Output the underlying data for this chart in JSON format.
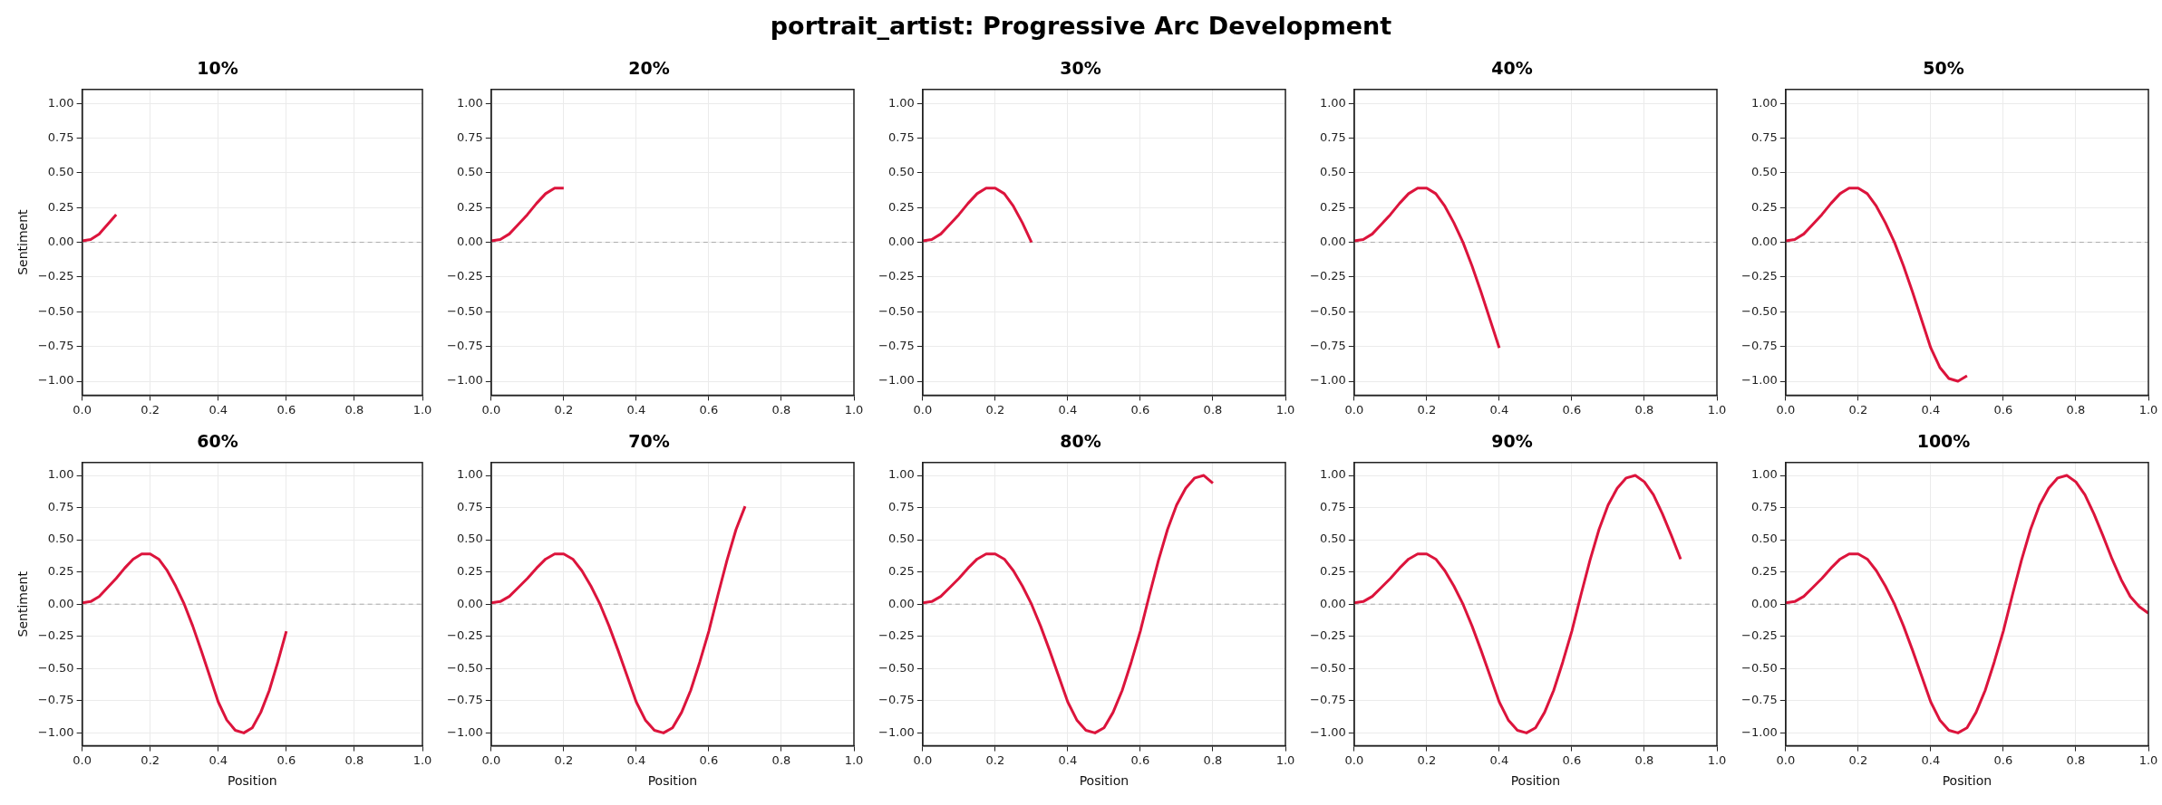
{
  "chart_data": [
    {
      "type": "line",
      "title": "10%",
      "ylabel": "Sentiment",
      "annotations": [
        "portrait_artist: Progressive Arc Development"
      ],
      "xlim": [
        0,
        1
      ],
      "ylim": [
        -1.1,
        1.1
      ],
      "xticks": [
        {
          "value": 0,
          "label": "0.0"
        },
        {
          "value": 0.2,
          "label": "0.2"
        },
        {
          "value": 0.4,
          "label": "0.4"
        },
        {
          "value": 0.6,
          "label": "0.6"
        },
        {
          "value": 0.8,
          "label": "0.8"
        },
        {
          "value": 1,
          "label": "1.0"
        }
      ],
      "yticks": [
        {
          "value": -1,
          "label": "−1.00"
        },
        {
          "value": -0.75,
          "label": "−0.75"
        },
        {
          "value": -0.5,
          "label": "−0.50"
        },
        {
          "value": -0.25,
          "label": "−0.25"
        },
        {
          "value": 0,
          "label": "0.00"
        },
        {
          "value": 0.25,
          "label": "0.25"
        },
        {
          "value": 0.5,
          "label": "0.50"
        },
        {
          "value": 0.75,
          "label": "0.75"
        },
        {
          "value": 1,
          "label": "1.00"
        }
      ],
      "grid": true,
      "ref_lines": [
        {
          "axis": "y",
          "value": 0,
          "color": "#aaaaaa",
          "line_style": "dashed"
        }
      ],
      "series": [
        {
          "color": "#dc143c",
          "x": [
            0,
            0.025,
            0.05,
            0.075,
            0.1
          ],
          "values": [
            0.01,
            0.02,
            0.06,
            0.13,
            0.2
          ]
        }
      ]
    },
    {
      "type": "line",
      "title": "20%",
      "xlim": [
        0,
        1
      ],
      "ylim": [
        -1.1,
        1.1
      ],
      "xticks": [
        {
          "value": 0,
          "label": "0.0"
        },
        {
          "value": 0.2,
          "label": "0.2"
        },
        {
          "value": 0.4,
          "label": "0.4"
        },
        {
          "value": 0.6,
          "label": "0.6"
        },
        {
          "value": 0.8,
          "label": "0.8"
        },
        {
          "value": 1,
          "label": "1.0"
        }
      ],
      "yticks": [
        {
          "value": -1,
          "label": "−1.00"
        },
        {
          "value": -0.75,
          "label": "−0.75"
        },
        {
          "value": -0.5,
          "label": "−0.50"
        },
        {
          "value": -0.25,
          "label": "−0.25"
        },
        {
          "value": 0,
          "label": "0.00"
        },
        {
          "value": 0.25,
          "label": "0.25"
        },
        {
          "value": 0.5,
          "label": "0.50"
        },
        {
          "value": 0.75,
          "label": "0.75"
        },
        {
          "value": 1,
          "label": "1.00"
        }
      ],
      "grid": true,
      "ref_lines": [
        {
          "axis": "y",
          "value": 0,
          "color": "#aaaaaa",
          "line_style": "dashed"
        }
      ],
      "series": [
        {
          "color": "#dc143c",
          "x": [
            0,
            0.025,
            0.05,
            0.075,
            0.1,
            0.125,
            0.15,
            0.175,
            0.2
          ],
          "values": [
            0.01,
            0.02,
            0.06,
            0.13,
            0.2,
            0.28,
            0.35,
            0.39,
            0.39
          ]
        }
      ]
    },
    {
      "type": "line",
      "title": "30%",
      "xlim": [
        0,
        1
      ],
      "ylim": [
        -1.1,
        1.1
      ],
      "xticks": [
        {
          "value": 0,
          "label": "0.0"
        },
        {
          "value": 0.2,
          "label": "0.2"
        },
        {
          "value": 0.4,
          "label": "0.4"
        },
        {
          "value": 0.6,
          "label": "0.6"
        },
        {
          "value": 0.8,
          "label": "0.8"
        },
        {
          "value": 1,
          "label": "1.0"
        }
      ],
      "yticks": [
        {
          "value": -1,
          "label": "−1.00"
        },
        {
          "value": -0.75,
          "label": "−0.75"
        },
        {
          "value": -0.5,
          "label": "−0.50"
        },
        {
          "value": -0.25,
          "label": "−0.25"
        },
        {
          "value": 0,
          "label": "0.00"
        },
        {
          "value": 0.25,
          "label": "0.25"
        },
        {
          "value": 0.5,
          "label": "0.50"
        },
        {
          "value": 0.75,
          "label": "0.75"
        },
        {
          "value": 1,
          "label": "1.00"
        }
      ],
      "grid": true,
      "ref_lines": [
        {
          "axis": "y",
          "value": 0,
          "color": "#aaaaaa",
          "line_style": "dashed"
        }
      ],
      "series": [
        {
          "color": "#dc143c",
          "x": [
            0,
            0.025,
            0.05,
            0.075,
            0.1,
            0.125,
            0.15,
            0.175,
            0.2,
            0.225,
            0.25,
            0.275,
            0.3
          ],
          "values": [
            0.01,
            0.02,
            0.06,
            0.13,
            0.2,
            0.28,
            0.35,
            0.39,
            0.39,
            0.35,
            0.26,
            0.14,
            0
          ]
        }
      ]
    },
    {
      "type": "line",
      "title": "40%",
      "xlim": [
        0,
        1
      ],
      "ylim": [
        -1.1,
        1.1
      ],
      "xticks": [
        {
          "value": 0,
          "label": "0.0"
        },
        {
          "value": 0.2,
          "label": "0.2"
        },
        {
          "value": 0.4,
          "label": "0.4"
        },
        {
          "value": 0.6,
          "label": "0.6"
        },
        {
          "value": 0.8,
          "label": "0.8"
        },
        {
          "value": 1,
          "label": "1.0"
        }
      ],
      "yticks": [
        {
          "value": -1,
          "label": "−1.00"
        },
        {
          "value": -0.75,
          "label": "−0.75"
        },
        {
          "value": -0.5,
          "label": "−0.50"
        },
        {
          "value": -0.25,
          "label": "−0.25"
        },
        {
          "value": 0,
          "label": "0.00"
        },
        {
          "value": 0.25,
          "label": "0.25"
        },
        {
          "value": 0.5,
          "label": "0.50"
        },
        {
          "value": 0.75,
          "label": "0.75"
        },
        {
          "value": 1,
          "label": "1.00"
        }
      ],
      "grid": true,
      "ref_lines": [
        {
          "axis": "y",
          "value": 0,
          "color": "#aaaaaa",
          "line_style": "dashed"
        }
      ],
      "series": [
        {
          "color": "#dc143c",
          "x": [
            0,
            0.025,
            0.05,
            0.075,
            0.1,
            0.125,
            0.15,
            0.175,
            0.2,
            0.225,
            0.25,
            0.275,
            0.3,
            0.325,
            0.35,
            0.375,
            0.4
          ],
          "values": [
            0.01,
            0.02,
            0.06,
            0.13,
            0.2,
            0.28,
            0.35,
            0.39,
            0.39,
            0.35,
            0.26,
            0.14,
            0,
            -0.17,
            -0.36,
            -0.56,
            -0.76
          ]
        }
      ]
    },
    {
      "type": "line",
      "title": "50%",
      "xlim": [
        0,
        1
      ],
      "ylim": [
        -1.1,
        1.1
      ],
      "xticks": [
        {
          "value": 0,
          "label": "0.0"
        },
        {
          "value": 0.2,
          "label": "0.2"
        },
        {
          "value": 0.4,
          "label": "0.4"
        },
        {
          "value": 0.6,
          "label": "0.6"
        },
        {
          "value": 0.8,
          "label": "0.8"
        },
        {
          "value": 1,
          "label": "1.0"
        }
      ],
      "yticks": [
        {
          "value": -1,
          "label": "−1.00"
        },
        {
          "value": -0.75,
          "label": "−0.75"
        },
        {
          "value": -0.5,
          "label": "−0.50"
        },
        {
          "value": -0.25,
          "label": "−0.25"
        },
        {
          "value": 0,
          "label": "0.00"
        },
        {
          "value": 0.25,
          "label": "0.25"
        },
        {
          "value": 0.5,
          "label": "0.50"
        },
        {
          "value": 0.75,
          "label": "0.75"
        },
        {
          "value": 1,
          "label": "1.00"
        }
      ],
      "grid": true,
      "ref_lines": [
        {
          "axis": "y",
          "value": 0,
          "color": "#aaaaaa",
          "line_style": "dashed"
        }
      ],
      "series": [
        {
          "color": "#dc143c",
          "x": [
            0,
            0.025,
            0.05,
            0.075,
            0.1,
            0.125,
            0.15,
            0.175,
            0.2,
            0.225,
            0.25,
            0.275,
            0.3,
            0.325,
            0.35,
            0.375,
            0.4,
            0.425,
            0.45,
            0.475,
            0.5
          ],
          "values": [
            0.01,
            0.02,
            0.06,
            0.13,
            0.2,
            0.28,
            0.35,
            0.39,
            0.39,
            0.35,
            0.26,
            0.14,
            0,
            -0.17,
            -0.36,
            -0.56,
            -0.76,
            -0.9,
            -0.98,
            -1,
            -0.96
          ]
        }
      ]
    },
    {
      "type": "line",
      "title": "60%",
      "xlabel": "Position",
      "ylabel": "Sentiment",
      "xlim": [
        0,
        1
      ],
      "ylim": [
        -1.1,
        1.1
      ],
      "xticks": [
        {
          "value": 0,
          "label": "0.0"
        },
        {
          "value": 0.2,
          "label": "0.2"
        },
        {
          "value": 0.4,
          "label": "0.4"
        },
        {
          "value": 0.6,
          "label": "0.6"
        },
        {
          "value": 0.8,
          "label": "0.8"
        },
        {
          "value": 1,
          "label": "1.0"
        }
      ],
      "yticks": [
        {
          "value": -1,
          "label": "−1.00"
        },
        {
          "value": -0.75,
          "label": "−0.75"
        },
        {
          "value": -0.5,
          "label": "−0.50"
        },
        {
          "value": -0.25,
          "label": "−0.25"
        },
        {
          "value": 0,
          "label": "0.00"
        },
        {
          "value": 0.25,
          "label": "0.25"
        },
        {
          "value": 0.5,
          "label": "0.50"
        },
        {
          "value": 0.75,
          "label": "0.75"
        },
        {
          "value": 1,
          "label": "1.00"
        }
      ],
      "grid": true,
      "ref_lines": [
        {
          "axis": "y",
          "value": 0,
          "color": "#aaaaaa",
          "line_style": "dashed"
        }
      ],
      "series": [
        {
          "color": "#dc143c",
          "x": [
            0,
            0.025,
            0.05,
            0.075,
            0.1,
            0.125,
            0.15,
            0.175,
            0.2,
            0.225,
            0.25,
            0.275,
            0.3,
            0.325,
            0.35,
            0.375,
            0.4,
            0.425,
            0.45,
            0.475,
            0.5,
            0.525,
            0.55,
            0.575,
            0.6
          ],
          "values": [
            0.01,
            0.02,
            0.06,
            0.13,
            0.2,
            0.28,
            0.35,
            0.39,
            0.39,
            0.35,
            0.26,
            0.14,
            0,
            -0.17,
            -0.36,
            -0.56,
            -0.76,
            -0.9,
            -0.98,
            -1,
            -0.96,
            -0.84,
            -0.67,
            -0.45,
            -0.21
          ]
        }
      ]
    },
    {
      "type": "line",
      "title": "70%",
      "xlabel": "Position",
      "xlim": [
        0,
        1
      ],
      "ylim": [
        -1.1,
        1.1
      ],
      "xticks": [
        {
          "value": 0,
          "label": "0.0"
        },
        {
          "value": 0.2,
          "label": "0.2"
        },
        {
          "value": 0.4,
          "label": "0.4"
        },
        {
          "value": 0.6,
          "label": "0.6"
        },
        {
          "value": 0.8,
          "label": "0.8"
        },
        {
          "value": 1,
          "label": "1.0"
        }
      ],
      "yticks": [
        {
          "value": -1,
          "label": "−1.00"
        },
        {
          "value": -0.75,
          "label": "−0.75"
        },
        {
          "value": -0.5,
          "label": "−0.50"
        },
        {
          "value": -0.25,
          "label": "−0.25"
        },
        {
          "value": 0,
          "label": "0.00"
        },
        {
          "value": 0.25,
          "label": "0.25"
        },
        {
          "value": 0.5,
          "label": "0.50"
        },
        {
          "value": 0.75,
          "label": "0.75"
        },
        {
          "value": 1,
          "label": "1.00"
        }
      ],
      "grid": true,
      "ref_lines": [
        {
          "axis": "y",
          "value": 0,
          "color": "#aaaaaa",
          "line_style": "dashed"
        }
      ],
      "series": [
        {
          "color": "#dc143c",
          "x": [
            0,
            0.025,
            0.05,
            0.075,
            0.1,
            0.125,
            0.15,
            0.175,
            0.2,
            0.225,
            0.25,
            0.275,
            0.3,
            0.325,
            0.35,
            0.375,
            0.4,
            0.425,
            0.45,
            0.475,
            0.5,
            0.525,
            0.55,
            0.575,
            0.6,
            0.625,
            0.65,
            0.675,
            0.7
          ],
          "values": [
            0.01,
            0.02,
            0.06,
            0.13,
            0.2,
            0.28,
            0.35,
            0.39,
            0.39,
            0.35,
            0.26,
            0.14,
            0,
            -0.17,
            -0.36,
            -0.56,
            -0.76,
            -0.9,
            -0.98,
            -1,
            -0.96,
            -0.84,
            -0.67,
            -0.45,
            -0.21,
            0.07,
            0.34,
            0.58,
            0.76
          ]
        }
      ]
    },
    {
      "type": "line",
      "title": "80%",
      "xlabel": "Position",
      "xlim": [
        0,
        1
      ],
      "ylim": [
        -1.1,
        1.1
      ],
      "xticks": [
        {
          "value": 0,
          "label": "0.0"
        },
        {
          "value": 0.2,
          "label": "0.2"
        },
        {
          "value": 0.4,
          "label": "0.4"
        },
        {
          "value": 0.6,
          "label": "0.6"
        },
        {
          "value": 0.8,
          "label": "0.8"
        },
        {
          "value": 1,
          "label": "1.0"
        }
      ],
      "yticks": [
        {
          "value": -1,
          "label": "−1.00"
        },
        {
          "value": -0.75,
          "label": "−0.75"
        },
        {
          "value": -0.5,
          "label": "−0.50"
        },
        {
          "value": -0.25,
          "label": "−0.25"
        },
        {
          "value": 0,
          "label": "0.00"
        },
        {
          "value": 0.25,
          "label": "0.25"
        },
        {
          "value": 0.5,
          "label": "0.50"
        },
        {
          "value": 0.75,
          "label": "0.75"
        },
        {
          "value": 1,
          "label": "1.00"
        }
      ],
      "grid": true,
      "ref_lines": [
        {
          "axis": "y",
          "value": 0,
          "color": "#aaaaaa",
          "line_style": "dashed"
        }
      ],
      "series": [
        {
          "color": "#dc143c",
          "x": [
            0,
            0.025,
            0.05,
            0.075,
            0.1,
            0.125,
            0.15,
            0.175,
            0.2,
            0.225,
            0.25,
            0.275,
            0.3,
            0.325,
            0.35,
            0.375,
            0.4,
            0.425,
            0.45,
            0.475,
            0.5,
            0.525,
            0.55,
            0.575,
            0.6,
            0.625,
            0.65,
            0.675,
            0.7,
            0.725,
            0.75,
            0.775,
            0.8
          ],
          "values": [
            0.01,
            0.02,
            0.06,
            0.13,
            0.2,
            0.28,
            0.35,
            0.39,
            0.39,
            0.35,
            0.26,
            0.14,
            0,
            -0.17,
            -0.36,
            -0.56,
            -0.76,
            -0.9,
            -0.98,
            -1,
            -0.96,
            -0.84,
            -0.67,
            -0.45,
            -0.21,
            0.07,
            0.34,
            0.58,
            0.77,
            0.9,
            0.98,
            1,
            0.94
          ]
        }
      ]
    },
    {
      "type": "line",
      "title": "90%",
      "xlabel": "Position",
      "xlim": [
        0,
        1
      ],
      "ylim": [
        -1.1,
        1.1
      ],
      "xticks": [
        {
          "value": 0,
          "label": "0.0"
        },
        {
          "value": 0.2,
          "label": "0.2"
        },
        {
          "value": 0.4,
          "label": "0.4"
        },
        {
          "value": 0.6,
          "label": "0.6"
        },
        {
          "value": 0.8,
          "label": "0.8"
        },
        {
          "value": 1,
          "label": "1.0"
        }
      ],
      "yticks": [
        {
          "value": -1,
          "label": "−1.00"
        },
        {
          "value": -0.75,
          "label": "−0.75"
        },
        {
          "value": -0.5,
          "label": "−0.50"
        },
        {
          "value": -0.25,
          "label": "−0.25"
        },
        {
          "value": 0,
          "label": "0.00"
        },
        {
          "value": 0.25,
          "label": "0.25"
        },
        {
          "value": 0.5,
          "label": "0.50"
        },
        {
          "value": 0.75,
          "label": "0.75"
        },
        {
          "value": 1,
          "label": "1.00"
        }
      ],
      "grid": true,
      "ref_lines": [
        {
          "axis": "y",
          "value": 0,
          "color": "#aaaaaa",
          "line_style": "dashed"
        }
      ],
      "series": [
        {
          "color": "#dc143c",
          "x": [
            0,
            0.025,
            0.05,
            0.075,
            0.1,
            0.125,
            0.15,
            0.175,
            0.2,
            0.225,
            0.25,
            0.275,
            0.3,
            0.325,
            0.35,
            0.375,
            0.4,
            0.425,
            0.45,
            0.475,
            0.5,
            0.525,
            0.55,
            0.575,
            0.6,
            0.625,
            0.65,
            0.675,
            0.7,
            0.725,
            0.75,
            0.775,
            0.8,
            0.825,
            0.85,
            0.875,
            0.9
          ],
          "values": [
            0.01,
            0.02,
            0.06,
            0.13,
            0.2,
            0.28,
            0.35,
            0.39,
            0.39,
            0.35,
            0.26,
            0.14,
            0,
            -0.17,
            -0.36,
            -0.56,
            -0.76,
            -0.9,
            -0.98,
            -1,
            -0.96,
            -0.84,
            -0.67,
            -0.45,
            -0.21,
            0.07,
            0.34,
            0.58,
            0.77,
            0.9,
            0.98,
            1,
            0.95,
            0.85,
            0.7,
            0.53,
            0.35
          ]
        }
      ]
    },
    {
      "type": "line",
      "title": "100%",
      "xlabel": "Position",
      "xlim": [
        0,
        1
      ],
      "ylim": [
        -1.1,
        1.1
      ],
      "xticks": [
        {
          "value": 0,
          "label": "0.0"
        },
        {
          "value": 0.2,
          "label": "0.2"
        },
        {
          "value": 0.4,
          "label": "0.4"
        },
        {
          "value": 0.6,
          "label": "0.6"
        },
        {
          "value": 0.8,
          "label": "0.8"
        },
        {
          "value": 1,
          "label": "1.0"
        }
      ],
      "yticks": [
        {
          "value": -1,
          "label": "−1.00"
        },
        {
          "value": -0.75,
          "label": "−0.75"
        },
        {
          "value": -0.5,
          "label": "−0.50"
        },
        {
          "value": -0.25,
          "label": "−0.25"
        },
        {
          "value": 0,
          "label": "0.00"
        },
        {
          "value": 0.25,
          "label": "0.25"
        },
        {
          "value": 0.5,
          "label": "0.50"
        },
        {
          "value": 0.75,
          "label": "0.75"
        },
        {
          "value": 1,
          "label": "1.00"
        }
      ],
      "grid": true,
      "ref_lines": [
        {
          "axis": "y",
          "value": 0,
          "color": "#aaaaaa",
          "line_style": "dashed"
        }
      ],
      "series": [
        {
          "color": "#dc143c",
          "x": [
            0,
            0.025,
            0.05,
            0.075,
            0.1,
            0.125,
            0.15,
            0.175,
            0.2,
            0.225,
            0.25,
            0.275,
            0.3,
            0.325,
            0.35,
            0.375,
            0.4,
            0.425,
            0.45,
            0.475,
            0.5,
            0.525,
            0.55,
            0.575,
            0.6,
            0.625,
            0.65,
            0.675,
            0.7,
            0.725,
            0.75,
            0.775,
            0.8,
            0.825,
            0.85,
            0.875,
            0.9,
            0.925,
            0.95,
            0.975,
            1
          ],
          "values": [
            0.01,
            0.02,
            0.06,
            0.13,
            0.2,
            0.28,
            0.35,
            0.39,
            0.39,
            0.35,
            0.26,
            0.14,
            0,
            -0.17,
            -0.36,
            -0.56,
            -0.76,
            -0.9,
            -0.98,
            -1,
            -0.96,
            -0.84,
            -0.67,
            -0.45,
            -0.21,
            0.07,
            0.34,
            0.58,
            0.77,
            0.9,
            0.98,
            1,
            0.95,
            0.85,
            0.7,
            0.53,
            0.35,
            0.19,
            0.06,
            -0.02,
            -0.07
          ]
        }
      ]
    }
  ]
}
